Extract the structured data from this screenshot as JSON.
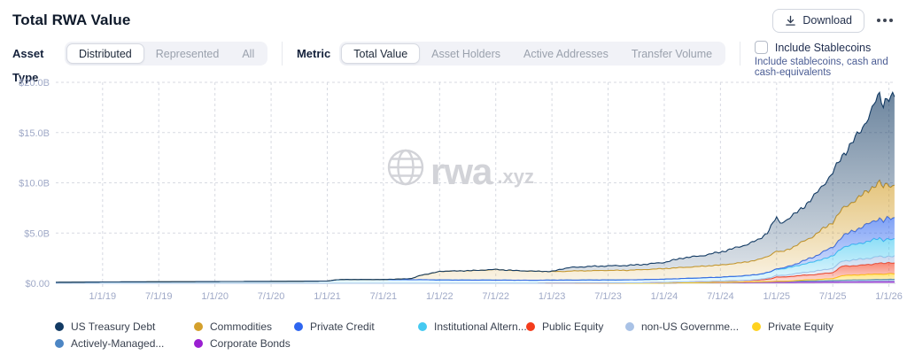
{
  "header": {
    "title": "Total RWA Value",
    "download_label": "Download",
    "menu_label": "more-options"
  },
  "controls": {
    "asset_type": {
      "label": "Asset Type",
      "options": [
        "Distributed",
        "Represented",
        "All"
      ],
      "selected": "Distributed"
    },
    "metric": {
      "label": "Metric",
      "options": [
        "Total Value",
        "Asset Holders",
        "Active Addresses",
        "Transfer Volume"
      ],
      "selected": "Total Value"
    },
    "stablecoins": {
      "label": "Include Stablecoins",
      "description": "Include stablecoins, cash and cash-equivalents",
      "checked": false
    }
  },
  "watermark": {
    "text": "rwa",
    "suffix": ".xyz"
  },
  "legend": {
    "rows": [
      [
        "US Treasury Debt",
        "Commodities",
        "Private Credit",
        "Institutional Altern...",
        "Public Equity",
        "non-US Governme...",
        "Private Equity"
      ],
      [
        "Actively-Managed...",
        "Corporate Bonds"
      ]
    ],
    "row1_col_widths": [
      157,
      113,
      140,
      122,
      112,
      143,
      120
    ]
  },
  "chart_data": {
    "type": "area",
    "stacked": true,
    "title": "Total RWA Value",
    "unit": "USD billions",
    "ylim": [
      0,
      20
    ],
    "y_tick_values": [
      0,
      5,
      10,
      15,
      20
    ],
    "y_tick_labels": [
      "$0.00",
      "$5.0B",
      "$10.0B",
      "$15.0B",
      "$20.0B"
    ],
    "x_domain_months": [
      -5,
      84.7
    ],
    "x_tick_months": [
      0,
      6,
      12,
      18,
      24,
      30,
      36,
      42,
      48,
      54,
      60,
      66,
      72,
      78,
      84
    ],
    "x_tick_labels": [
      "1/1/19",
      "7/1/19",
      "1/1/20",
      "7/1/20",
      "1/1/21",
      "7/1/21",
      "1/1/22",
      "7/1/22",
      "1/1/23",
      "7/1/23",
      "1/1/24",
      "7/1/24",
      "1/1/25",
      "7/1/25",
      "1/1/26"
    ],
    "grid": true,
    "legend_position": "bottom",
    "x_months": [
      -5,
      0,
      6,
      12,
      18,
      24,
      25,
      26,
      30,
      33,
      34,
      35,
      36,
      40,
      42,
      44,
      46,
      48,
      49,
      50,
      52,
      54,
      56,
      58,
      60,
      62,
      63,
      64,
      66,
      68,
      70,
      71,
      71.5,
      72,
      72.3,
      73,
      74,
      75,
      76,
      77,
      78,
      79,
      80,
      81,
      82,
      82.5,
      83,
      83.4,
      83.7,
      84,
      84.6
    ],
    "series_note": "values in $ billions, listed bottom-to-top of stack",
    "series": [
      {
        "name": "Corporate Bonds",
        "color": "#9a1fd1",
        "values": [
          0,
          0,
          0,
          0,
          0,
          0,
          0,
          0,
          0,
          0,
          0,
          0,
          0,
          0,
          0,
          0,
          0,
          0,
          0,
          0,
          0,
          0,
          0,
          0,
          0.02,
          0.05,
          0.05,
          0.06,
          0.07,
          0.08,
          0.09,
          0.09,
          0.09,
          0.1,
          0.1,
          0.1,
          0.1,
          0.11,
          0.11,
          0.12,
          0.12,
          0.13,
          0.13,
          0.14,
          0.14,
          0.15,
          0.15,
          0.15,
          0.15,
          0.15,
          0.15
        ]
      },
      {
        "name": "Actively-Managed...",
        "color": "#4d86c4",
        "values": [
          0,
          0,
          0,
          0,
          0,
          0,
          0,
          0,
          0,
          0,
          0,
          0,
          0,
          0,
          0,
          0,
          0,
          0,
          0,
          0,
          0,
          0,
          0,
          0,
          0,
          0,
          0,
          0,
          0.02,
          0.04,
          0.06,
          0.07,
          0.08,
          0.09,
          0.09,
          0.1,
          0.11,
          0.12,
          0.13,
          0.15,
          0.16,
          0.18,
          0.2,
          0.21,
          0.22,
          0.23,
          0.24,
          0.24,
          0.25,
          0.25,
          0.25
        ]
      },
      {
        "name": "Private Equity",
        "color": "#ffd21f",
        "values": [
          0,
          0,
          0,
          0,
          0,
          0,
          0,
          0,
          0,
          0,
          0,
          0,
          0,
          0,
          0,
          0,
          0,
          0,
          0,
          0,
          0,
          0,
          0,
          0,
          0,
          0,
          0,
          0,
          0,
          0,
          0,
          0,
          0,
          0,
          0,
          0,
          0.06,
          0.1,
          0.12,
          0.15,
          0.18,
          0.45,
          0.48,
          0.5,
          0.52,
          0.53,
          0.55,
          0.5,
          0.52,
          0.55,
          0.55
        ]
      },
      {
        "name": "Public Equity",
        "color": "#f43c1c",
        "values": [
          0,
          0,
          0,
          0,
          0,
          0,
          0,
          0,
          0,
          0,
          0,
          0,
          0,
          0,
          0,
          0,
          0,
          0.02,
          0.02,
          0.02,
          0.03,
          0.03,
          0.04,
          0.05,
          0.06,
          0.08,
          0.09,
          0.1,
          0.12,
          0.14,
          0.17,
          0.25,
          0.3,
          0.45,
          0.42,
          0.44,
          0.46,
          0.48,
          0.5,
          0.55,
          0.6,
          0.95,
          0.93,
          0.95,
          1.0,
          1.05,
          1.1,
          1.05,
          1.1,
          1.1,
          1.1
        ]
      },
      {
        "name": "non-US Governme...",
        "color": "#a9c2e6",
        "values": [
          0,
          0,
          0,
          0,
          0,
          0,
          0,
          0,
          0,
          0,
          0,
          0,
          0,
          0,
          0,
          0,
          0,
          0,
          0,
          0,
          0,
          0,
          0,
          0,
          0,
          0,
          0,
          0,
          0,
          0,
          0.05,
          0.1,
          0.12,
          0.15,
          0.15,
          0.18,
          0.22,
          0.28,
          0.32,
          0.38,
          0.42,
          0.5,
          0.55,
          0.6,
          0.62,
          0.64,
          0.65,
          0.63,
          0.65,
          0.65,
          0.65
        ]
      },
      {
        "name": "Institutional Altern...",
        "color": "#45c9f1",
        "values": [
          0.1,
          0.13,
          0.15,
          0.17,
          0.19,
          0.22,
          0.35,
          0.37,
          0.37,
          0.36,
          0.36,
          0.35,
          0.33,
          0.32,
          0.32,
          0.31,
          0.3,
          0.3,
          0.3,
          0.3,
          0.3,
          0.3,
          0.3,
          0.32,
          0.33,
          0.35,
          0.36,
          0.38,
          0.4,
          0.45,
          0.5,
          0.55,
          0.6,
          0.65,
          0.63,
          0.68,
          0.75,
          0.85,
          0.95,
          1.1,
          1.2,
          1.35,
          1.5,
          1.6,
          1.7,
          1.75,
          1.8,
          1.7,
          1.75,
          1.65,
          1.65
        ]
      },
      {
        "name": "Private Credit",
        "color": "#2e66f0",
        "values": [
          0,
          0,
          0,
          0,
          0,
          0,
          0,
          0,
          0,
          0,
          0,
          0,
          0,
          0,
          0,
          0,
          0,
          0,
          0,
          0,
          0,
          0,
          0,
          0,
          0,
          0,
          0,
          0,
          0,
          0,
          0,
          0,
          0,
          0.05,
          0.06,
          0.1,
          0.2,
          0.35,
          0.5,
          0.7,
          0.9,
          1.1,
          1.35,
          1.55,
          1.8,
          1.9,
          2.0,
          1.9,
          2.0,
          2.1,
          2.1
        ]
      },
      {
        "name": "Commodities",
        "color": "#d4a02c",
        "values": [
          0,
          0,
          0,
          0,
          0,
          0,
          0,
          0,
          0,
          0.1,
          0.45,
          0.6,
          0.85,
          0.95,
          1.05,
          0.95,
          0.9,
          0.85,
          0.85,
          0.9,
          0.92,
          0.95,
          0.95,
          1.0,
          1.05,
          1.1,
          1.12,
          1.15,
          1.2,
          1.3,
          1.45,
          1.6,
          1.7,
          1.75,
          1.6,
          1.7,
          1.8,
          1.95,
          2.1,
          2.3,
          2.5,
          2.7,
          2.9,
          3.1,
          3.4,
          3.5,
          3.55,
          3.3,
          3.45,
          3.3,
          3.3
        ]
      },
      {
        "name": "US Treasury Debt",
        "color": "#123a63",
        "values": [
          0,
          0,
          0,
          0,
          0,
          0,
          0,
          0,
          0,
          0,
          0,
          0,
          0,
          0,
          0,
          0,
          0,
          0,
          0.25,
          0.35,
          0.42,
          0.45,
          0.48,
          0.52,
          0.62,
          0.95,
          1.0,
          1.05,
          1.3,
          1.6,
          1.95,
          2.4,
          2.9,
          3.3,
          2.9,
          3.0,
          3.2,
          3.5,
          3.9,
          4.4,
          4.9,
          5.3,
          5.9,
          6.5,
          7.6,
          8.2,
          8.6,
          8.3,
          8.6,
          8.9,
          8.8
        ]
      }
    ]
  }
}
